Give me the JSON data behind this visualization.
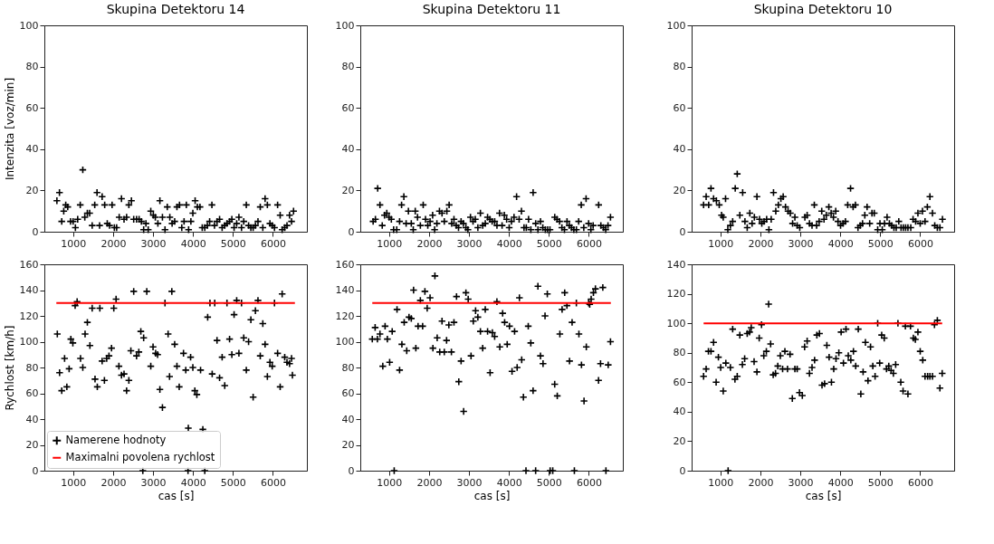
{
  "chart_data": [
    {
      "type": "scatter",
      "title": "Skupina Detektoru 14",
      "ylabel": "Intenzita [voz/min]",
      "xlim": [
        280,
        6850
      ],
      "xticks": [
        1000,
        2000,
        3000,
        4000,
        5000,
        6000
      ],
      "ylim": [
        0,
        100
      ],
      "yticks": [
        0,
        20,
        40,
        60,
        80,
        100
      ],
      "marker": "cross",
      "series": [
        {
          "color": "#000000",
          "x": [
            594,
            658,
            715,
            765,
            815,
            865,
            936,
            1000,
            1057,
            1114,
            1178,
            1242,
            1292,
            1356,
            1413,
            1477,
            1541,
            1598,
            1662,
            1726,
            1790,
            1854,
            1911,
            1975,
            2032,
            2089,
            2153,
            2210,
            2274,
            2338,
            2395,
            2459,
            2516,
            2587,
            2651,
            2708,
            2765,
            2822,
            2879,
            2943,
            3007,
            3057,
            3121,
            3171,
            3235,
            3299,
            3356,
            3420,
            3477,
            3541,
            3598,
            3662,
            3719,
            3776,
            3833,
            3890,
            3947,
            3996,
            4053,
            4110,
            4174,
            4231,
            4295,
            4359,
            4416,
            4473,
            4537,
            4601,
            4665,
            4729,
            4794,
            4850,
            4915,
            4972,
            5028,
            5093,
            5149,
            5214,
            5270,
            5334,
            5391,
            5448,
            5505,
            5562,
            5626,
            5683,
            5747,
            5804,
            5861,
            5925,
            5982,
            6039,
            6117,
            6181,
            6231,
            6295,
            6352,
            6416,
            6466,
            6516
          ],
          "values": [
            15,
            19,
            5,
            10,
            13,
            12,
            5,
            5,
            2,
            6,
            13,
            30,
            7,
            9,
            9,
            3,
            13,
            19,
            3,
            17,
            13,
            4,
            3,
            13,
            2,
            2,
            7,
            16,
            6,
            7,
            13,
            15,
            6,
            6,
            6,
            5,
            1,
            4,
            1,
            10,
            8,
            7,
            4,
            15,
            7,
            1,
            12,
            7,
            4,
            5,
            12,
            13,
            2,
            5,
            13,
            1,
            5,
            9,
            15,
            12,
            12,
            2,
            2,
            3,
            5,
            13,
            3,
            5,
            6,
            2,
            3,
            4,
            5,
            6,
            2,
            4,
            7,
            2,
            5,
            13,
            3,
            2,
            2,
            3,
            5,
            12,
            2,
            16,
            13,
            4,
            3,
            2,
            13,
            8,
            1,
            2,
            3,
            8,
            5,
            10
          ]
        }
      ]
    },
    {
      "type": "scatter",
      "title": "Skupina Detektoru 11",
      "xlim": [
        280,
        6850
      ],
      "xticks": [
        1000,
        2000,
        3000,
        4000,
        5000,
        6000
      ],
      "ylim": [
        0,
        100
      ],
      "yticks": [
        0,
        20,
        40,
        60,
        80,
        100
      ],
      "marker": "cross",
      "series": [
        {
          "color": "#000000",
          "x": [
            601,
            658,
            715,
            772,
            829,
            886,
            943,
            1000,
            1057,
            1114,
            1192,
            1263,
            1313,
            1370,
            1427,
            1484,
            1556,
            1605,
            1655,
            1712,
            1783,
            1854,
            1912,
            1969,
            2026,
            2090,
            2140,
            2197,
            2261,
            2325,
            2382,
            2446,
            2503,
            2567,
            2624,
            2681,
            2738,
            2802,
            2859,
            2923,
            2973,
            3037,
            3101,
            3158,
            3222,
            3286,
            3344,
            3408,
            3465,
            3522,
            3579,
            3643,
            3700,
            3764,
            3828,
            3885,
            3942,
            4006,
            4063,
            4127,
            4191,
            4255,
            4313,
            4377,
            4434,
            4491,
            4548,
            4605,
            4669,
            4726,
            4790,
            4847,
            4911,
            4968,
            5026,
            5146,
            5203,
            5267,
            5325,
            5389,
            5453,
            5510,
            5567,
            5624,
            5688,
            5745,
            5809,
            5873,
            5930,
            5994,
            6050,
            6107,
            6245,
            6300,
            6364,
            6422,
            6479,
            6541
          ],
          "values": [
            5,
            6,
            21,
            13,
            3,
            8,
            9,
            7,
            6,
            1,
            1,
            5,
            13,
            17,
            4,
            10,
            4,
            1,
            10,
            7,
            3,
            13,
            6,
            3,
            5,
            8,
            1,
            4,
            10,
            9,
            5,
            10,
            13,
            4,
            6,
            3,
            2,
            5,
            4,
            2,
            1,
            7,
            5,
            6,
            2,
            9,
            3,
            4,
            7,
            6,
            5,
            5,
            3,
            9,
            3,
            8,
            6,
            2,
            5,
            7,
            17,
            6,
            10,
            2,
            2,
            6,
            1,
            19,
            4,
            1,
            5,
            2,
            1,
            1,
            1,
            7,
            6,
            5,
            2,
            1,
            5,
            3,
            2,
            1,
            1,
            5,
            13,
            2,
            16,
            4,
            1,
            3,
            13,
            3,
            2,
            1,
            3,
            7
          ]
        }
      ]
    },
    {
      "type": "scatter",
      "title": "Skupina Detektoru 10",
      "xlim": [
        280,
        6850
      ],
      "xticks": [
        1000,
        2000,
        3000,
        4000,
        5000,
        6000
      ],
      "ylim": [
        0,
        100
      ],
      "yticks": [
        0,
        20,
        40,
        60,
        80,
        100
      ],
      "marker": "cross",
      "series": [
        {
          "color": "#000000",
          "x": [
            579,
            643,
            707,
            764,
            829,
            900,
            971,
            1029,
            1071,
            1129,
            1186,
            1250,
            1307,
            1371,
            1421,
            1486,
            1557,
            1614,
            1671,
            1736,
            1793,
            1850,
            1914,
            1979,
            2036,
            2093,
            2157,
            2214,
            2271,
            2329,
            2386,
            2450,
            2514,
            2571,
            2629,
            2693,
            2750,
            2807,
            2864,
            2921,
            2986,
            3114,
            3171,
            3229,
            3293,
            3350,
            3407,
            3471,
            3536,
            3593,
            3650,
            3714,
            3771,
            3829,
            3886,
            3943,
            4007,
            4071,
            4129,
            4186,
            4257,
            4321,
            4379,
            4443,
            4500,
            4557,
            4614,
            4671,
            4736,
            4793,
            4850,
            4936,
            4993,
            5050,
            5107,
            5171,
            5229,
            5286,
            5343,
            5400,
            5464,
            5521,
            5579,
            5636,
            5693,
            5764,
            5821,
            5886,
            5943,
            6000,
            6057,
            6121,
            6179,
            6243,
            6307,
            6364,
            6429,
            6493,
            6557
          ],
          "values": [
            13,
            17,
            13,
            21,
            16,
            15,
            13,
            8,
            7,
            16,
            1,
            3,
            5,
            21,
            28,
            8,
            19,
            5,
            2,
            9,
            4,
            7,
            17,
            6,
            4,
            5,
            6,
            1,
            6,
            19,
            10,
            13,
            16,
            17,
            12,
            10,
            9,
            4,
            7,
            3,
            2,
            7,
            8,
            4,
            3,
            13,
            3,
            5,
            10,
            6,
            8,
            12,
            9,
            7,
            10,
            5,
            3,
            4,
            5,
            13,
            21,
            12,
            13,
            2,
            3,
            4,
            8,
            12,
            4,
            9,
            9,
            1,
            4,
            1,
            4,
            7,
            4,
            3,
            2,
            2,
            5,
            2,
            2,
            2,
            2,
            2,
            6,
            5,
            9,
            4,
            10,
            5,
            12,
            17,
            9,
            3,
            2,
            2,
            6
          ]
        }
      ]
    },
    {
      "type": "scatter",
      "xlabel": "cas [s]",
      "ylabel": "Rychlost [km/h]",
      "xlim": [
        280,
        6850
      ],
      "xticks": [
        1000,
        2000,
        3000,
        4000,
        5000,
        6000
      ],
      "ylim": [
        0,
        160
      ],
      "yticks": [
        0,
        20,
        40,
        60,
        80,
        100,
        120,
        140,
        160
      ],
      "marker": "cross",
      "legend": "bottom left",
      "series": [
        {
          "name": "Namerene hodnoty",
          "color": "#000000",
          "x": [
            604,
            661,
            715,
            786,
            843,
            900,
            943,
            993,
            1050,
            1100,
            1185,
            1242,
            1299,
            1356,
            1420,
            1477,
            1548,
            1605,
            1669,
            1726,
            1783,
            1840,
            1897,
            1961,
            2018,
            2075,
            2146,
            2210,
            2274,
            2338,
            2395,
            2445,
            2516,
            2587,
            2644,
            2694,
            2744,
            2765,
            2843,
            2943,
            3000,
            3064,
            3114,
            3171,
            3235,
            3299,
            3377,
            3413,
            3470,
            3541,
            3598,
            3655,
            3762,
            3819,
            3875,
            3883,
            3940,
            3996,
            4046,
            4096,
            4189,
            4246,
            4295,
            4367,
            4424,
            4480,
            4544,
            4601,
            4665,
            4729,
            4794,
            4850,
            4915,
            4972,
            5028,
            5093,
            5149,
            5214,
            5270,
            5334,
            5391,
            5448,
            5505,
            5562,
            5626,
            5683,
            5747,
            5804,
            5861,
            5925,
            5982,
            6039,
            6117,
            6181,
            6231,
            6295,
            6352,
            6416,
            6466,
            6488
          ],
          "values": [
            106,
            76,
            62,
            87,
            65,
            79,
            102,
            99,
            128,
            131,
            87,
            80,
            106,
            115,
            97,
            126,
            71,
            65,
            126,
            85,
            70,
            87,
            89,
            95,
            126,
            133,
            81,
            74,
            75,
            62,
            70,
            93,
            139,
            89,
            92,
            108,
            0,
            103,
            139,
            81,
            96,
            91,
            90,
            63,
            49,
            130,
            106,
            73,
            139,
            98,
            81,
            65,
            91,
            78,
            0,
            33,
            88,
            80,
            62,
            59,
            78,
            32,
            0,
            119,
            130,
            75,
            130,
            101,
            72,
            88,
            66,
            130,
            102,
            90,
            121,
            132,
            91,
            130,
            103,
            78,
            100,
            117,
            57,
            124,
            132,
            89,
            114,
            98,
            73,
            84,
            81,
            130,
            91,
            65,
            137,
            88,
            84,
            83,
            87,
            74
          ]
        },
        {
          "name": "Maximalni povolena rychlost",
          "type": "line",
          "marker": "none",
          "color": "#ff0000",
          "x": [
            580,
            6550
          ],
          "values": [
            130,
            130
          ]
        }
      ]
    },
    {
      "type": "scatter",
      "xlabel": "cas [s]",
      "xlim": [
        280,
        6850
      ],
      "xticks": [
        1000,
        2000,
        3000,
        4000,
        5000,
        6000
      ],
      "ylim": [
        0,
        160
      ],
      "yticks": [
        0,
        20,
        40,
        60,
        80,
        100,
        120,
        140,
        160
      ],
      "marker": "cross",
      "series": [
        {
          "color": "#000000",
          "x": [
            580,
            651,
            708,
            772,
            843,
            900,
            957,
            1014,
            1078,
            1128,
            1199,
            1263,
            1321,
            1378,
            1442,
            1499,
            1556,
            1613,
            1670,
            1726,
            1783,
            1840,
            1897,
            1954,
            2026,
            2097,
            2147,
            2204,
            2268,
            2325,
            2382,
            2439,
            2496,
            2560,
            2624,
            2688,
            2745,
            2802,
            2866,
            2923,
            2980,
            3051,
            3108,
            3165,
            3222,
            3286,
            3343,
            3407,
            3465,
            3528,
            3585,
            3642,
            3699,
            3771,
            3842,
            3892,
            3956,
            4013,
            4077,
            4141,
            4205,
            4262,
            4319,
            4362,
            4426,
            4483,
            4547,
            4604,
            4668,
            4725,
            4789,
            4853,
            4903,
            4960,
            5031,
            5096,
            5145,
            5209,
            5274,
            5330,
            5395,
            5451,
            5516,
            5580,
            5637,
            5687,
            5751,
            5815,
            5879,
            5936,
            5993,
            6021,
            6057,
            6114,
            6164,
            6242,
            6292,
            6349,
            6427,
            6484,
            6541
          ],
          "values": [
            102,
            111,
            102,
            106,
            81,
            112,
            102,
            84,
            108,
            0,
            125,
            78,
            98,
            115,
            93,
            119,
            118,
            140,
            95,
            112,
            132,
            112,
            139,
            126,
            134,
            95,
            151,
            103,
            92,
            116,
            92,
            101,
            113,
            92,
            115,
            135,
            69,
            85,
            46,
            138,
            133,
            89,
            116,
            124,
            119,
            108,
            95,
            125,
            108,
            76,
            107,
            104,
            131,
            96,
            122,
            115,
            98,
            112,
            77,
            108,
            80,
            134,
            86,
            57,
            0,
            112,
            99,
            62,
            0,
            143,
            89,
            83,
            120,
            137,
            0,
            0,
            67,
            58,
            106,
            125,
            138,
            128,
            85,
            115,
            0,
            130,
            106,
            82,
            54,
            96,
            130,
            129,
            133,
            138,
            141,
            70,
            83,
            142,
            0,
            82,
            100
          ]
        },
        {
          "type": "line",
          "marker": "none",
          "color": "#ff0000",
          "x": [
            580,
            6550
          ],
          "values": [
            130,
            130
          ]
        }
      ]
    },
    {
      "type": "scatter",
      "xlabel": "cas [s]",
      "xlim": [
        280,
        6850
      ],
      "xticks": [
        1000,
        2000,
        3000,
        4000,
        5000,
        6000
      ],
      "ylim": [
        0,
        140
      ],
      "yticks": [
        0,
        20,
        40,
        60,
        80,
        100,
        120,
        140
      ],
      "marker": "cross",
      "series": [
        {
          "color": "#000000",
          "x": [
            579,
            643,
            700,
            764,
            829,
            893,
            950,
            1007,
            1071,
            1136,
            1193,
            1250,
            1307,
            1364,
            1421,
            1486,
            1550,
            1607,
            1671,
            1729,
            1771,
            1843,
            1914,
            1971,
            2029,
            2086,
            2150,
            2207,
            2257,
            2321,
            2379,
            2436,
            2500,
            2557,
            2614,
            2679,
            2743,
            2800,
            2864,
            2921,
            2979,
            3050,
            3107,
            3171,
            3229,
            3293,
            3357,
            3414,
            3479,
            3543,
            3607,
            3664,
            3721,
            3779,
            3836,
            3893,
            3964,
            4021,
            4079,
            4143,
            4200,
            4264,
            4329,
            4386,
            4450,
            4514,
            4571,
            4629,
            4693,
            4757,
            4814,
            4871,
            4936,
            4986,
            5036,
            5100,
            5157,
            5214,
            5271,
            5329,
            5386,
            5443,
            5514,
            5571,
            5629,
            5693,
            5757,
            5829,
            5879,
            5943,
            6000,
            6064,
            6121,
            6186,
            6243,
            6307,
            6357,
            6429,
            6493,
            6550
          ],
          "values": [
            64,
            69,
            81,
            81,
            87,
            60,
            77,
            70,
            54,
            73,
            0,
            70,
            96,
            62,
            64,
            92,
            72,
            76,
            93,
            94,
            97,
            74,
            67,
            90,
            99,
            78,
            81,
            113,
            86,
            65,
            66,
            71,
            78,
            69,
            81,
            69,
            79,
            49,
            69,
            69,
            53,
            51,
            84,
            88,
            66,
            70,
            75,
            92,
            93,
            58,
            59,
            85,
            77,
            60,
            69,
            76,
            80,
            94,
            73,
            96,
            78,
            75,
            81,
            71,
            96,
            52,
            67,
            87,
            61,
            84,
            71,
            64,
            100,
            73,
            92,
            90,
            69,
            71,
            68,
            66,
            72,
            100,
            60,
            54,
            98,
            52,
            98,
            90,
            89,
            94,
            81,
            75,
            64,
            64,
            64,
            64,
            99,
            102,
            56,
            66
          ]
        },
        {
          "type": "line",
          "marker": "none",
          "color": "#ff0000",
          "x": [
            580,
            6550
          ],
          "values": [
            100,
            100
          ]
        }
      ]
    }
  ]
}
